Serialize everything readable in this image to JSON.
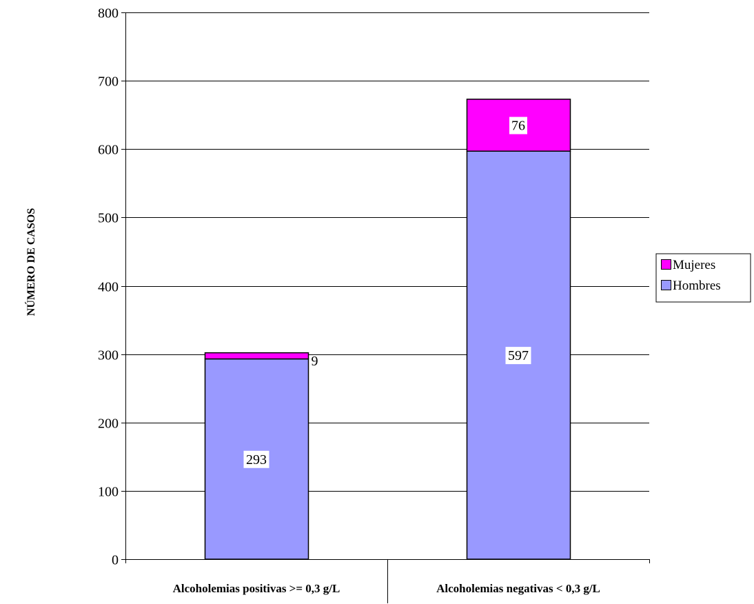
{
  "chart_data": {
    "type": "bar",
    "stacked": true,
    "title": "",
    "xlabel": "",
    "ylabel": "NÚMERO DE CASOS",
    "ylim": [
      0,
      800
    ],
    "yticks": [
      0,
      100,
      200,
      300,
      400,
      500,
      600,
      700,
      800
    ],
    "grid": true,
    "legend_position": "right",
    "categories": [
      "Alcoholemias positivas >= 0,3 g/L",
      "Alcoholemias negativas < 0,3 g/L"
    ],
    "series": [
      {
        "name": "Hombres",
        "values": [
          293,
          597
        ],
        "color": "#9999ff"
      },
      {
        "name": "Mujeres",
        "values": [
          9,
          76
        ],
        "color": "#ff00ff"
      }
    ],
    "legend_order": [
      "Mujeres",
      "Hombres"
    ]
  }
}
